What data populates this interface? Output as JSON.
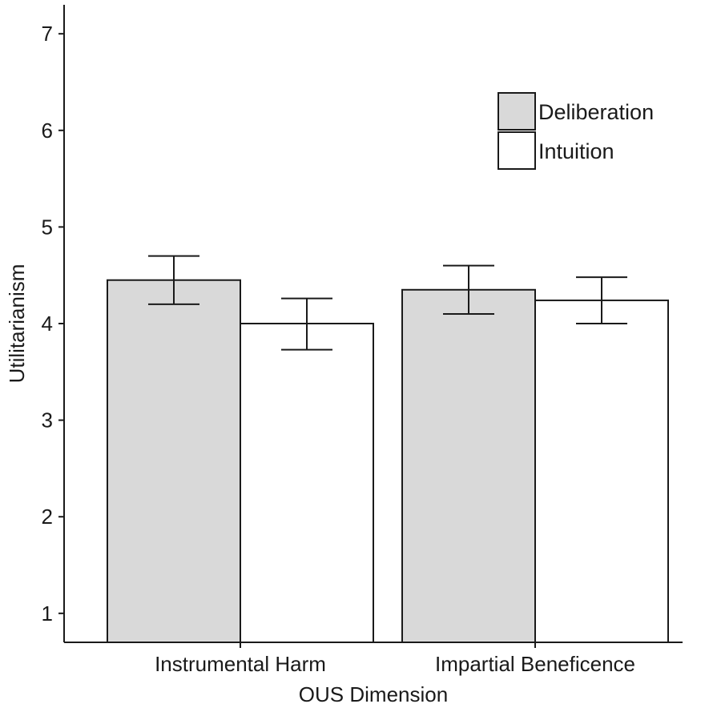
{
  "chart_data": {
    "type": "bar",
    "title": "",
    "xlabel": "OUS Dimension",
    "ylabel": "Utilitarianism",
    "categories": [
      "Instrumental Harm",
      "Impartial Beneficence"
    ],
    "series": [
      {
        "name": "Deliberation",
        "color": "#d9d9d9",
        "values": [
          4.45,
          4.35
        ],
        "error_low": [
          4.2,
          4.1
        ],
        "error_high": [
          4.7,
          4.6
        ]
      },
      {
        "name": "Intuition",
        "color": "#ffffff",
        "values": [
          4.0,
          4.24
        ],
        "error_low": [
          3.73,
          4.0
        ],
        "error_high": [
          4.26,
          4.48
        ]
      }
    ],
    "ylim": [
      0.7,
      7.3
    ],
    "yticks": [
      1,
      2,
      3,
      4,
      5,
      6,
      7
    ],
    "grid": false,
    "legend_position": "top-right"
  }
}
